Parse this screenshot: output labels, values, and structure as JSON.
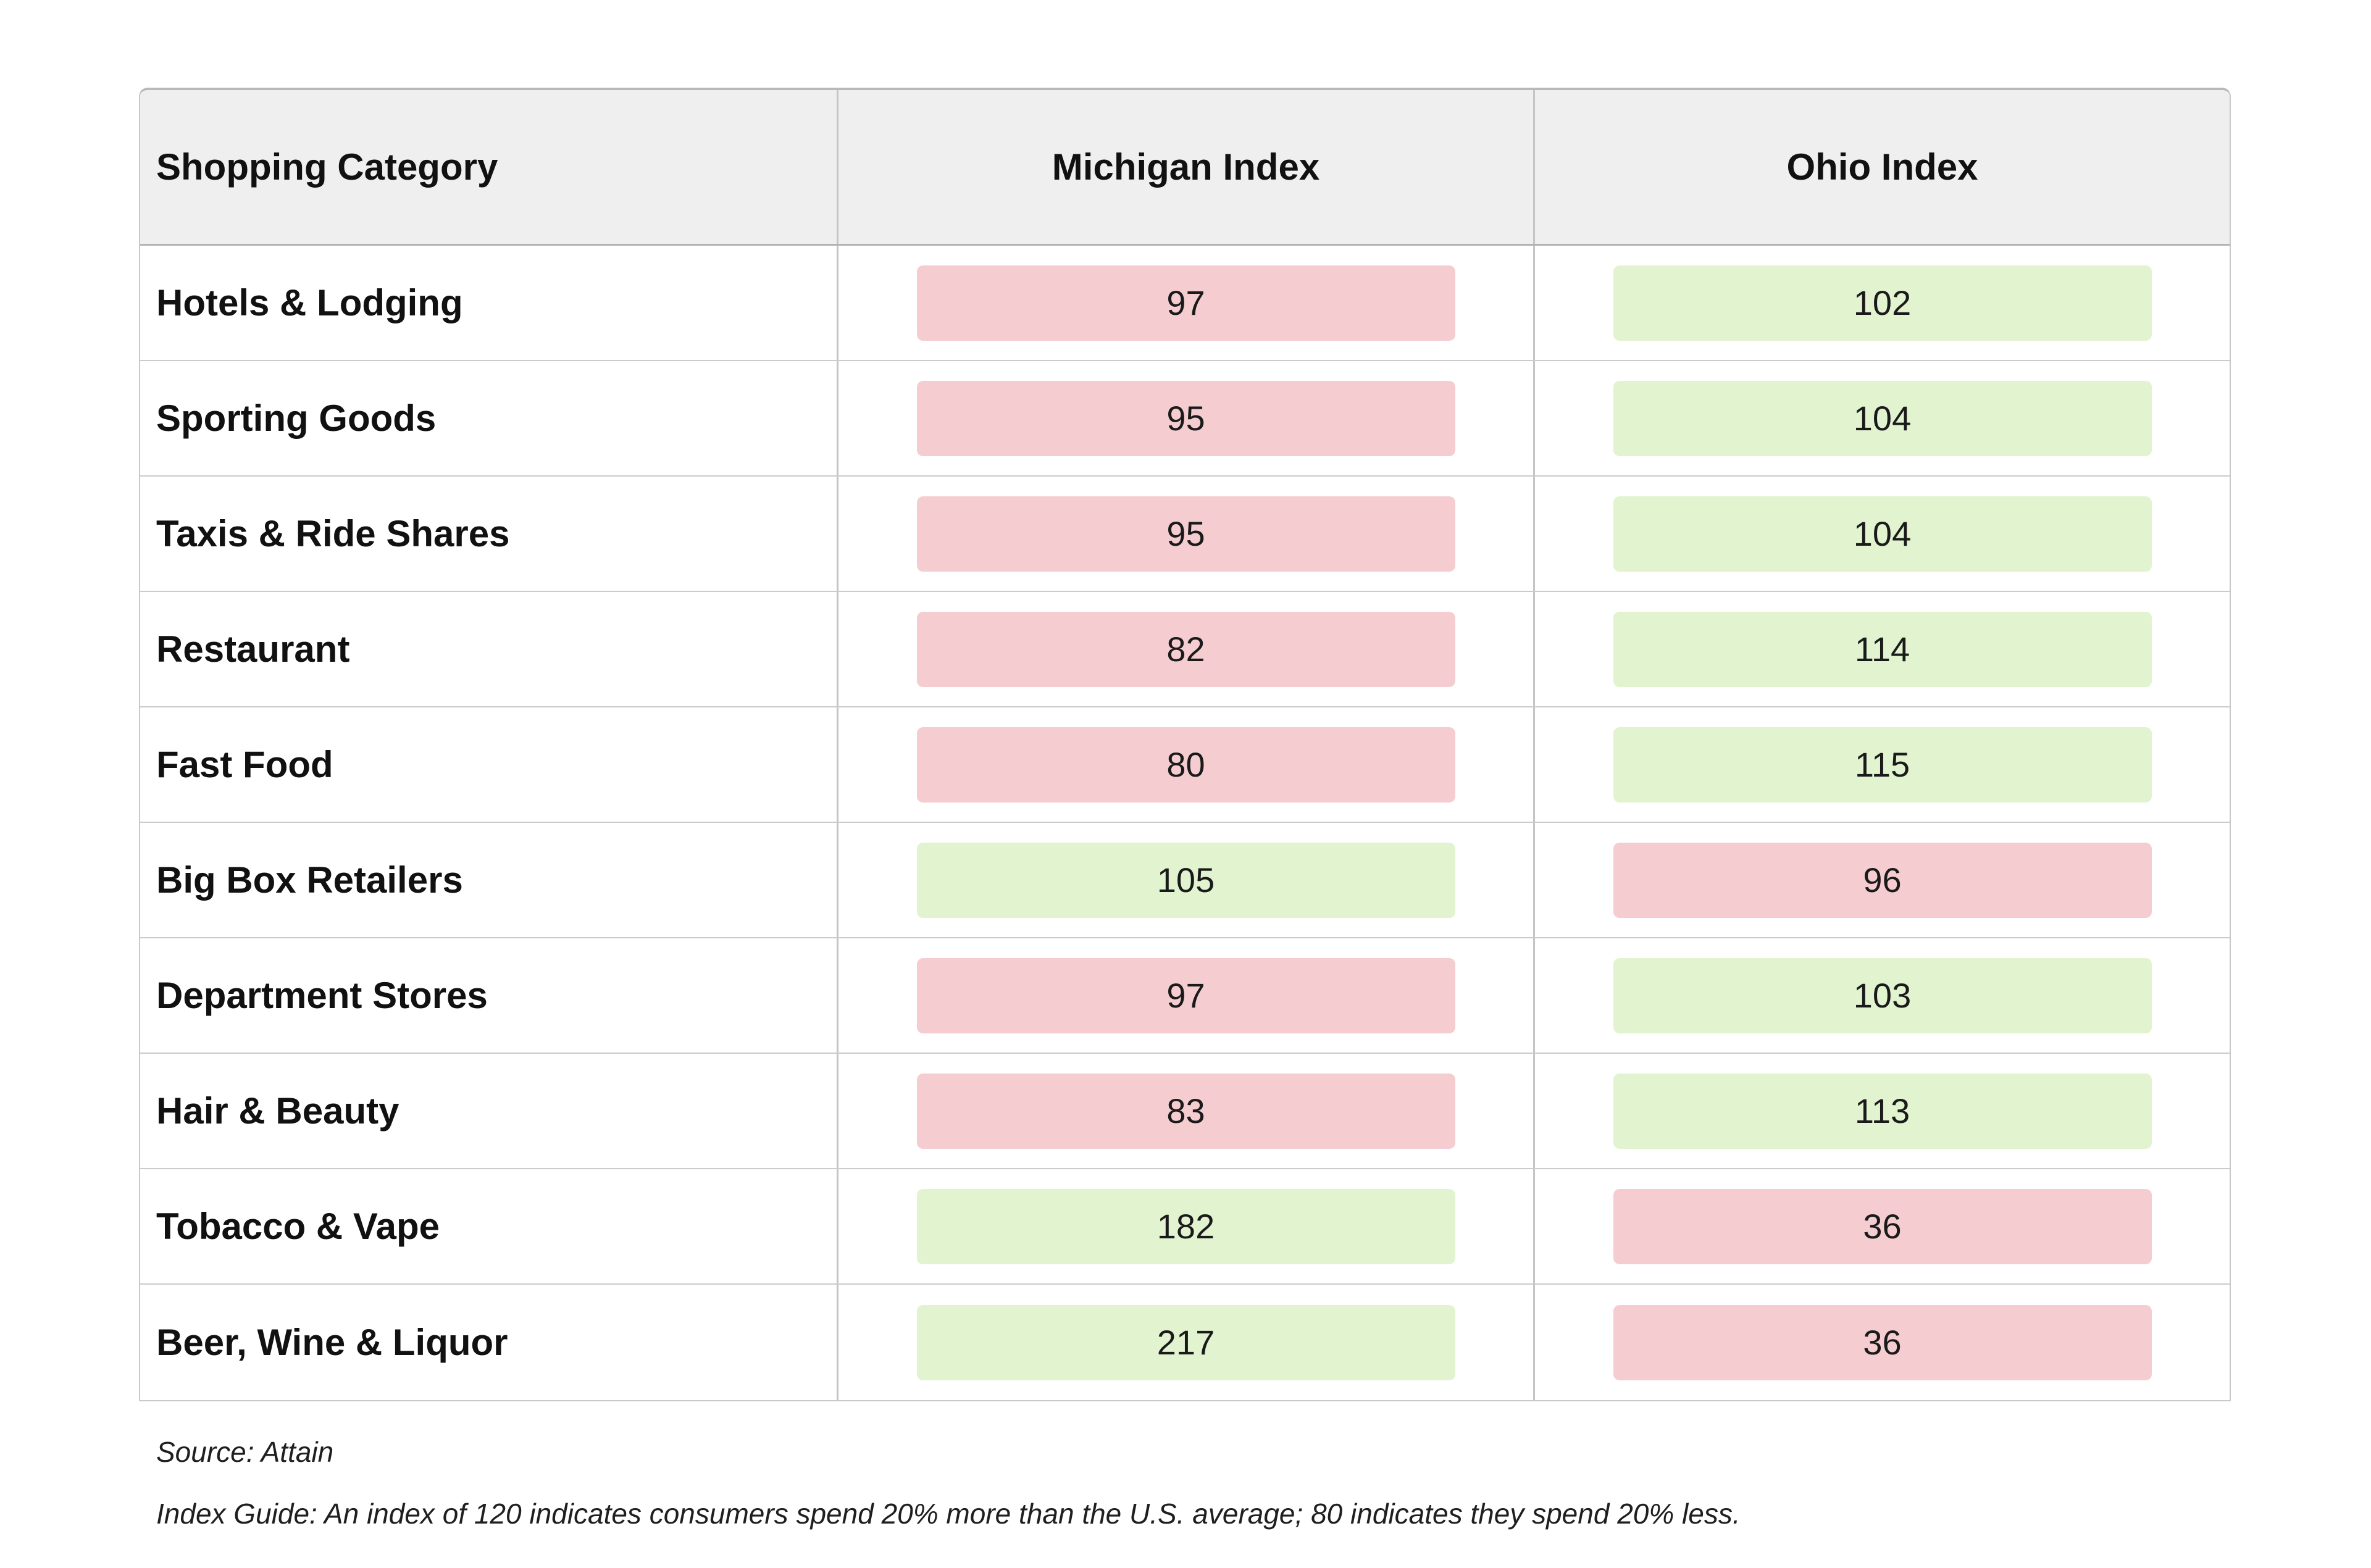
{
  "palette": {
    "red_fill": "#f5cdd1",
    "green_fill": "#e2f3cf",
    "header_bg": "#efefef",
    "grid_line": "#c5c5c5",
    "text": "#141414"
  },
  "table": {
    "headers": {
      "category": "Shopping Category",
      "michigan": "Michigan Index",
      "ohio": "Ohio Index"
    },
    "rows": [
      {
        "category": "Hotels & Lodging",
        "michigan": {
          "value": "97",
          "tone": "red"
        },
        "ohio": {
          "value": "102",
          "tone": "green"
        }
      },
      {
        "category": "Sporting Goods",
        "michigan": {
          "value": "95",
          "tone": "red"
        },
        "ohio": {
          "value": "104",
          "tone": "green"
        }
      },
      {
        "category": "Taxis & Ride Shares",
        "michigan": {
          "value": "95",
          "tone": "red"
        },
        "ohio": {
          "value": "104",
          "tone": "green"
        }
      },
      {
        "category": "Restaurant",
        "michigan": {
          "value": "82",
          "tone": "red"
        },
        "ohio": {
          "value": "114",
          "tone": "green"
        }
      },
      {
        "category": "Fast Food",
        "michigan": {
          "value": "80",
          "tone": "red"
        },
        "ohio": {
          "value": "115",
          "tone": "green"
        }
      },
      {
        "category": "Big Box Retailers",
        "michigan": {
          "value": "105",
          "tone": "green"
        },
        "ohio": {
          "value": "96",
          "tone": "red"
        }
      },
      {
        "category": "Department Stores",
        "michigan": {
          "value": "97",
          "tone": "red"
        },
        "ohio": {
          "value": "103",
          "tone": "green"
        }
      },
      {
        "category": "Hair & Beauty",
        "michigan": {
          "value": "83",
          "tone": "red"
        },
        "ohio": {
          "value": "113",
          "tone": "green"
        }
      },
      {
        "category": "Tobacco & Vape",
        "michigan": {
          "value": "182",
          "tone": "green"
        },
        "ohio": {
          "value": "36",
          "tone": "red"
        }
      },
      {
        "category": "Beer, Wine & Liquor",
        "michigan": {
          "value": "217",
          "tone": "green"
        },
        "ohio": {
          "value": "36",
          "tone": "red"
        }
      }
    ]
  },
  "footer": {
    "source": "Source: Attain",
    "index_guide": "Index Guide: An index of 120 indicates consumers spend 20% more than the U.S. average; 80 indicates they spend 20% less."
  },
  "chart_data": {
    "type": "table",
    "title": "",
    "categories": [
      "Hotels & Lodging",
      "Sporting Goods",
      "Taxis & Ride Shares",
      "Restaurant",
      "Fast Food",
      "Big Box Retailers",
      "Department Stores",
      "Hair & Beauty",
      "Tobacco & Vape",
      "Beer, Wine & Liquor"
    ],
    "series": [
      {
        "name": "Michigan Index",
        "values": [
          97,
          95,
          95,
          82,
          80,
          105,
          97,
          83,
          182,
          217
        ]
      },
      {
        "name": "Ohio Index",
        "values": [
          102,
          104,
          104,
          114,
          115,
          96,
          103,
          113,
          36,
          36
        ]
      }
    ],
    "annotations": [
      "Source: Attain",
      "Index Guide: An index of 120 indicates consumers spend 20% more than the U.S. average; 80 indicates they spend 20% less."
    ],
    "layout_hints": {
      "cell_highlight_rule": "value < 100 shaded red/pink, value >= 100 shaded green",
      "red_fill": "#f5cdd1",
      "green_fill": "#e2f3cf"
    }
  }
}
